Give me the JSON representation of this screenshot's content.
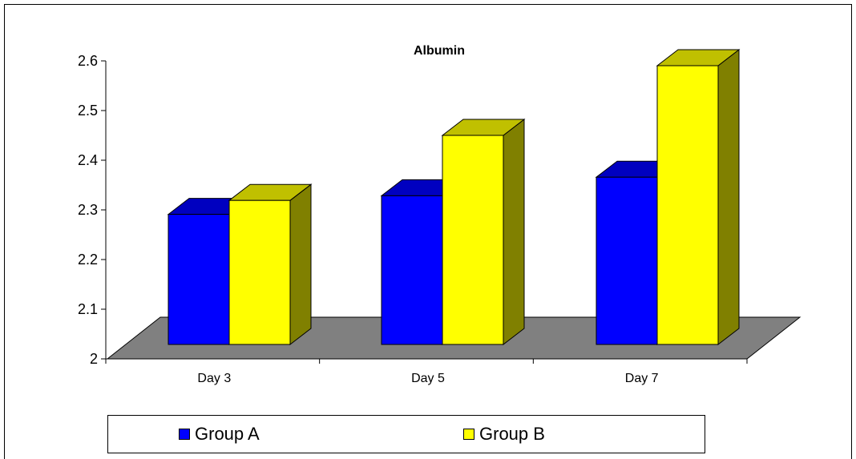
{
  "chart_data": {
    "type": "bar",
    "title": "Albumin",
    "categories": [
      "Day 3",
      "Day 5",
      "Day 7"
    ],
    "series": [
      {
        "name": "Group A",
        "values": [
          2.28,
          2.32,
          2.36
        ]
      },
      {
        "name": "Group B",
        "values": [
          2.31,
          2.45,
          2.6
        ]
      }
    ],
    "ylim": [
      2,
      2.6
    ],
    "yticks": [
      "2",
      "2.1",
      "2.2",
      "2.3",
      "2.4",
      "2.5",
      "2.6"
    ],
    "three_d": true,
    "legend_position": "bottom"
  },
  "colors": {
    "group_a_front": "#0000ff",
    "group_a_top": "#0000c0",
    "group_a_side": "#000080",
    "group_b_front": "#ffff00",
    "group_b_top": "#c0c000",
    "group_b_side": "#808000",
    "floor": "#808080"
  }
}
